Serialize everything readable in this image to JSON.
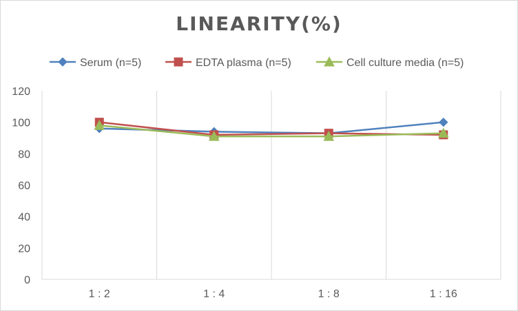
{
  "chart_data": {
    "type": "line",
    "title": "LINEARITY(%)",
    "categories": [
      "1:2",
      "1:4",
      "1:8",
      "1:16"
    ],
    "ylim": [
      0,
      120
    ],
    "yticks": [
      0,
      20,
      40,
      60,
      80,
      100,
      120
    ],
    "grid": "vertical category separators",
    "legend": "top",
    "series": [
      {
        "name": "Serum (n=5)",
        "color": "#4f81bd",
        "marker": "diamond",
        "values": [
          96,
          94,
          93,
          100
        ]
      },
      {
        "name": "EDTA plasma (n=5)",
        "color": "#c0504d",
        "marker": "square",
        "values": [
          100,
          92,
          93,
          92
        ]
      },
      {
        "name": "Cell culture media (n=5)",
        "color": "#9bbb59",
        "marker": "triangle",
        "values": [
          98,
          91,
          91,
          93
        ]
      }
    ]
  }
}
